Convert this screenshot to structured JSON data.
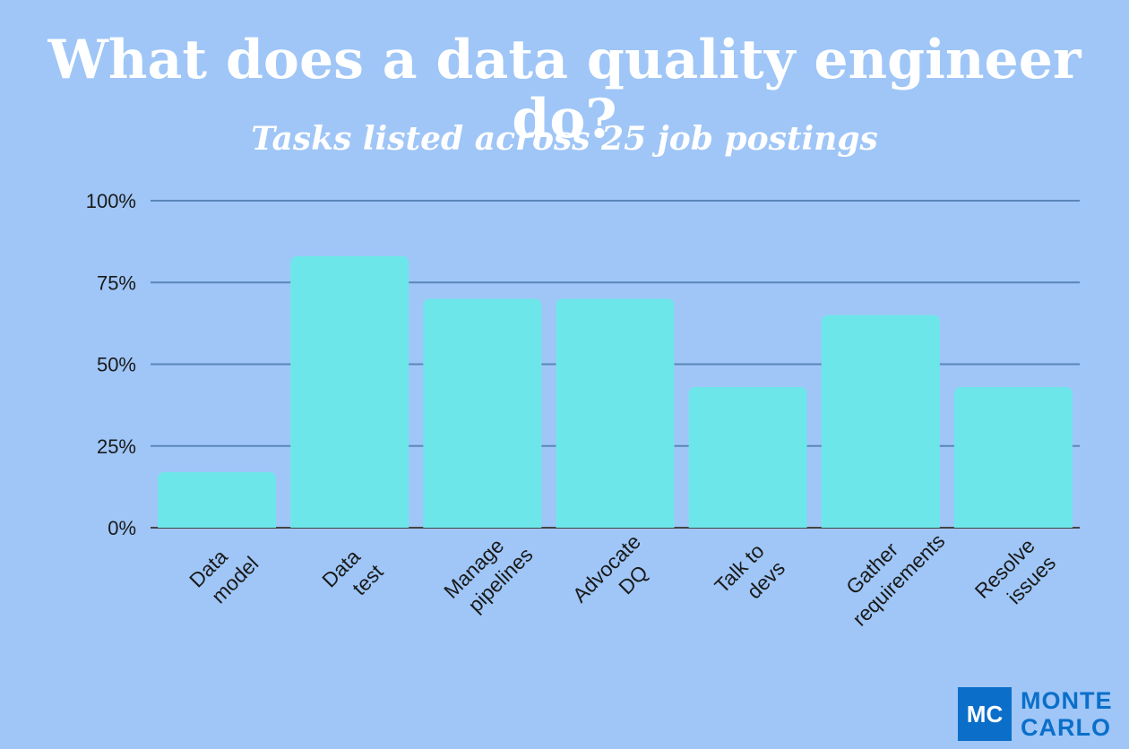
{
  "chart_data": {
    "type": "bar",
    "title": "What does a data quality engineer do?",
    "subtitle": "Tasks listed across 25 job postings",
    "categories": [
      [
        "Data",
        "model"
      ],
      [
        "Data",
        "test"
      ],
      [
        "Manage",
        "pipelines"
      ],
      [
        "Advocate",
        "DQ"
      ],
      [
        "Talk to",
        "devs"
      ],
      [
        "Gather",
        "requirements"
      ],
      [
        "Resolve",
        "issues"
      ]
    ],
    "values": [
      17,
      83,
      70,
      70,
      43,
      65,
      43
    ],
    "ylim": [
      0,
      100
    ],
    "yticks": [
      0,
      25,
      50,
      75,
      100
    ],
    "ytick_labels": [
      "0%",
      "25%",
      "50%",
      "75%",
      "100%"
    ],
    "grid": true,
    "colors": {
      "background": "#9fc6f7",
      "bar": "#6de6ea",
      "grid": "#5a86b8",
      "baseline": "#444444"
    }
  },
  "logo": {
    "mark": "MC",
    "line1": "MONTE",
    "line2": "CARLO",
    "color": "#0b6fc9"
  }
}
